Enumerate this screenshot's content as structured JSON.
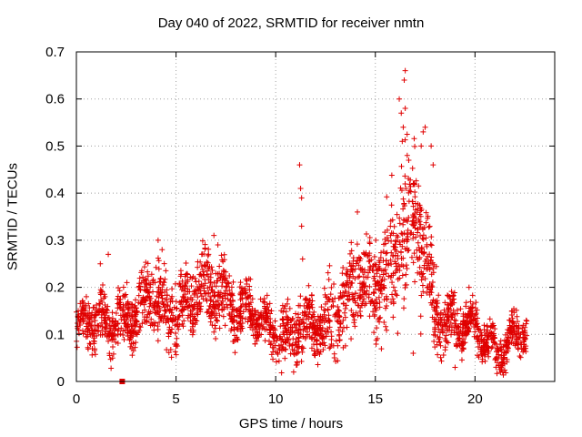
{
  "chart_data": {
    "type": "scatter",
    "title": "Day 040 of 2022, SRMTID for receiver nmtn",
    "xlabel": "GPS time / hours",
    "ylabel": "SRMTID / TECUs",
    "xlim": [
      0,
      24
    ],
    "ylim": [
      0,
      0.7
    ],
    "xticks": [
      0,
      5,
      10,
      15,
      20
    ],
    "yticks": [
      0,
      0.1,
      0.2,
      0.3,
      0.4,
      0.5,
      0.6,
      0.7
    ],
    "xtick_labels": [
      "0",
      "5",
      "10",
      "15",
      "20"
    ],
    "ytick_labels": [
      "0",
      "0.1",
      "0.2",
      "0.3",
      "0.4",
      "0.5",
      "0.6",
      "0.7"
    ],
    "grid": true,
    "series": [
      {
        "name": "SRMTID",
        "marker": "+",
        "color": "#e00000",
        "envelope_t": [
          0,
          1,
          2,
          3,
          4,
          5,
          6,
          7,
          8,
          9,
          10,
          11,
          12,
          13,
          14,
          15,
          15.5,
          16,
          16.4,
          17,
          17.5,
          18,
          19,
          20,
          21,
          22,
          22.6
        ],
        "envelope_center": [
          0.11,
          0.12,
          0.14,
          0.13,
          0.18,
          0.15,
          0.17,
          0.21,
          0.16,
          0.12,
          0.11,
          0.1,
          0.11,
          0.16,
          0.2,
          0.19,
          0.22,
          0.27,
          0.33,
          0.32,
          0.27,
          0.16,
          0.12,
          0.1,
          0.08,
          0.09,
          0.1
        ],
        "envelope_spread": [
          0.03,
          0.04,
          0.05,
          0.04,
          0.06,
          0.05,
          0.05,
          0.06,
          0.05,
          0.04,
          0.04,
          0.05,
          0.04,
          0.06,
          0.08,
          0.07,
          0.09,
          0.1,
          0.12,
          0.1,
          0.1,
          0.06,
          0.04,
          0.03,
          0.03,
          0.03,
          0.03
        ],
        "points_estimated": [
          [
            0.5,
            0.18
          ],
          [
            1.2,
            0.25
          ],
          [
            1.6,
            0.27
          ],
          [
            4.1,
            0.3
          ],
          [
            4.3,
            0.28
          ],
          [
            6.9,
            0.31
          ],
          [
            7.1,
            0.29
          ],
          [
            11.2,
            0.46
          ],
          [
            11.25,
            0.41
          ],
          [
            11.3,
            0.39
          ],
          [
            11.3,
            0.33
          ],
          [
            11.35,
            0.26
          ],
          [
            10.9,
            0.02
          ],
          [
            14.1,
            0.36
          ],
          [
            16.2,
            0.6
          ],
          [
            16.3,
            0.57
          ],
          [
            16.4,
            0.54
          ],
          [
            16.5,
            0.58
          ],
          [
            16.6,
            0.48
          ],
          [
            16.35,
            0.51
          ],
          [
            16.45,
            0.64
          ],
          [
            16.5,
            0.66
          ],
          [
            17.3,
            0.5
          ],
          [
            17.4,
            0.53
          ],
          [
            17.5,
            0.54
          ],
          [
            17.8,
            0.5
          ],
          [
            17.9,
            0.46
          ],
          [
            16.9,
            0.06
          ],
          [
            19.0,
            0.03
          ]
        ],
        "n_points": 2600
      },
      {
        "name": "outlier marker",
        "marker": "square",
        "color": "#e00000",
        "points": [
          [
            2.3,
            0.0
          ]
        ]
      }
    ]
  }
}
